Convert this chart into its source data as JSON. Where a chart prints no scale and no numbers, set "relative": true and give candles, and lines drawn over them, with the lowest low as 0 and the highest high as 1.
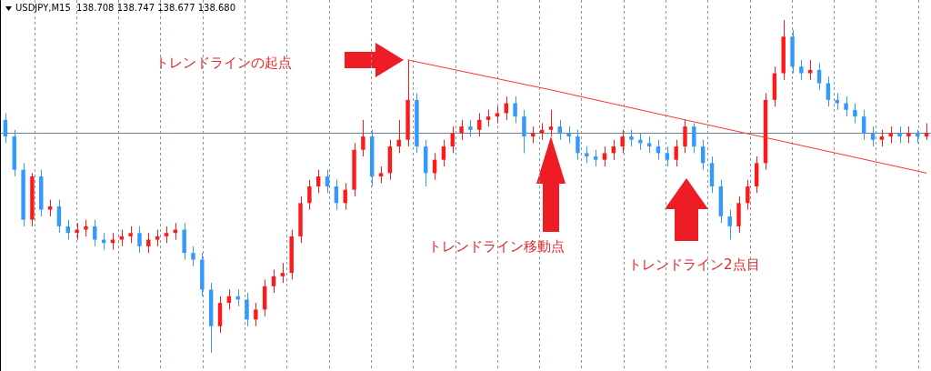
{
  "chart_data": {
    "type": "candlestick",
    "title": "USDJPY,M15  138.708 138.747 138.677 138.680",
    "relative": true,
    "tick_labels": false,
    "legend": false,
    "grid": "x",
    "annotations": [
      "トレンドラインの起点",
      "トレンドライン移動点",
      "トレンドライン2点目"
    ],
    "categories": [
      null,
      null,
      null,
      null,
      null,
      null,
      null,
      null,
      null,
      null,
      null,
      null,
      null,
      null,
      null,
      null,
      null,
      null,
      null,
      null,
      null,
      null,
      null,
      null,
      null,
      null,
      null,
      null,
      null,
      null,
      null,
      null,
      null,
      null,
      null,
      null,
      null,
      null,
      null,
      null,
      null,
      null,
      null,
      null,
      null,
      null,
      null,
      null,
      null,
      null,
      null,
      null,
      null,
      null,
      null,
      null,
      null,
      null,
      null,
      null,
      null,
      null,
      null,
      null,
      null,
      null,
      null,
      null,
      null,
      null,
      null,
      null,
      null,
      null,
      null,
      null,
      null,
      null,
      null,
      null,
      null,
      null,
      null,
      null,
      null,
      null,
      null,
      null,
      null,
      null,
      null,
      null,
      null,
      null,
      null,
      null,
      null,
      null,
      null,
      null,
      null,
      null,
      null,
      null
    ],
    "ref_lines": [
      {
        "axis": "y",
        "value": 0.66,
        "color": "#6e8096"
      }
    ],
    "series": [
      {
        "colors": [
          "#3399ff",
          "#3399ff",
          "#3399ff",
          "#ff1a1a",
          "#3399ff",
          "#ff1a1a",
          "#3399ff",
          "#3399ff",
          "#ff1a1a",
          "#ff1a1a",
          "#3399ff",
          "#3399ff",
          "#ff1a1a",
          "#ff1a1a",
          "#ff1a1a",
          "#3399ff",
          "#ff1a1a",
          "#ff1a1a",
          "#ff1a1a",
          "#ff1a1a",
          "#3399ff",
          "#3399ff",
          "#3399ff",
          "#3399ff",
          "#ff1a1a",
          "#ff1a1a",
          "#3399ff",
          "#3399ff",
          "#ff1a1a",
          "#ff1a1a",
          "#ff1a1a",
          "#ff1a1a",
          "#ff1a1a",
          "#ff1a1a",
          "#ff1a1a",
          "#ff1a1a",
          "#3399ff",
          "#3399ff",
          "#ff1a1a",
          "#ff1a1a",
          "#ff1a1a",
          "#3399ff",
          "#ff1a1a",
          "#ff1a1a",
          "#ff1a1a",
          "#ff1a1a",
          "#3399ff",
          "#3399ff",
          "#ff1a1a",
          "#ff1a1a",
          "#ff1a1a",
          "#ff1a1a",
          "#3399ff",
          "#ff1a1a",
          "#ff1a1a",
          "#ff1a1a",
          "#ff1a1a",
          "#3399ff",
          "#3399ff",
          "#ff1a1a",
          "#ff1a1a",
          "#ff1a1a",
          "#3399ff",
          "#3399ff",
          "#3399ff",
          "#3399ff",
          "#3399ff",
          "#ff1a1a",
          "#ff1a1a",
          "#ff1a1a",
          "#3399ff",
          "#3399ff",
          "#3399ff",
          "#3399ff",
          "#3399ff",
          "#ff1a1a",
          "#ff1a1a",
          "#3399ff",
          "#3399ff",
          "#3399ff",
          "#3399ff",
          "#3399ff",
          "#ff1a1a",
          "#ff1a1a",
          "#ff1a1a",
          "#ff1a1a",
          "#ff1a1a",
          "#ff1a1a",
          "#3399ff",
          "#3399ff",
          "#ff1a1a",
          "#3399ff",
          "#3399ff",
          "#3399ff",
          "#3399ff",
          "#3399ff",
          "#3399ff",
          "#3399ff",
          "#ff1a1a",
          "#ff1a1a",
          "#3399ff",
          "#ff1a1a",
          "#3399ff",
          "#ff1a1a"
        ],
        "ohlc": [
          [
            0.7,
            0.72,
            0.63,
            0.65
          ],
          [
            0.65,
            0.67,
            0.53,
            0.55
          ],
          [
            0.55,
            0.57,
            0.38,
            0.4
          ],
          [
            0.4,
            0.54,
            0.38,
            0.53
          ],
          [
            0.53,
            0.55,
            0.41,
            0.43
          ],
          [
            0.43,
            0.46,
            0.41,
            0.44
          ],
          [
            0.44,
            0.46,
            0.36,
            0.38
          ],
          [
            0.38,
            0.4,
            0.34,
            0.36
          ],
          [
            0.36,
            0.39,
            0.34,
            0.37
          ],
          [
            0.37,
            0.4,
            0.35,
            0.38
          ],
          [
            0.38,
            0.4,
            0.32,
            0.34
          ],
          [
            0.34,
            0.36,
            0.31,
            0.33
          ],
          [
            0.33,
            0.36,
            0.31,
            0.34
          ],
          [
            0.34,
            0.37,
            0.32,
            0.35
          ],
          [
            0.35,
            0.38,
            0.33,
            0.36
          ],
          [
            0.36,
            0.38,
            0.3,
            0.32
          ],
          [
            0.32,
            0.36,
            0.3,
            0.34
          ],
          [
            0.34,
            0.37,
            0.32,
            0.35
          ],
          [
            0.35,
            0.38,
            0.33,
            0.36
          ],
          [
            0.36,
            0.39,
            0.34,
            0.37
          ],
          [
            0.37,
            0.39,
            0.28,
            0.3
          ],
          [
            0.3,
            0.32,
            0.26,
            0.28
          ],
          [
            0.28,
            0.3,
            0.17,
            0.19
          ],
          [
            0.19,
            0.21,
            0.0,
            0.08
          ],
          [
            0.08,
            0.17,
            0.06,
            0.15
          ],
          [
            0.15,
            0.19,
            0.13,
            0.17
          ],
          [
            0.17,
            0.19,
            0.14,
            0.16
          ],
          [
            0.16,
            0.18,
            0.08,
            0.1
          ],
          [
            0.1,
            0.15,
            0.08,
            0.13
          ],
          [
            0.13,
            0.22,
            0.11,
            0.2
          ],
          [
            0.2,
            0.25,
            0.18,
            0.23
          ],
          [
            0.23,
            0.27,
            0.21,
            0.24
          ],
          [
            0.24,
            0.37,
            0.22,
            0.35
          ],
          [
            0.35,
            0.47,
            0.33,
            0.45
          ],
          [
            0.45,
            0.52,
            0.43,
            0.5
          ],
          [
            0.5,
            0.55,
            0.48,
            0.53
          ],
          [
            0.53,
            0.55,
            0.48,
            0.5
          ],
          [
            0.5,
            0.52,
            0.43,
            0.45
          ],
          [
            0.45,
            0.51,
            0.43,
            0.49
          ],
          [
            0.49,
            0.63,
            0.47,
            0.61
          ],
          [
            0.61,
            0.7,
            0.59,
            0.65
          ],
          [
            0.65,
            0.67,
            0.5,
            0.53
          ],
          [
            0.53,
            0.56,
            0.51,
            0.54
          ],
          [
            0.54,
            0.64,
            0.52,
            0.62
          ],
          [
            0.62,
            0.7,
            0.6,
            0.64
          ],
          [
            0.64,
            0.88,
            0.62,
            0.76
          ],
          [
            0.76,
            0.78,
            0.6,
            0.62
          ],
          [
            0.62,
            0.64,
            0.5,
            0.54
          ],
          [
            0.54,
            0.6,
            0.52,
            0.58
          ],
          [
            0.58,
            0.64,
            0.56,
            0.62
          ],
          [
            0.62,
            0.68,
            0.6,
            0.66
          ],
          [
            0.66,
            0.7,
            0.64,
            0.68
          ],
          [
            0.68,
            0.7,
            0.65,
            0.67
          ],
          [
            0.67,
            0.72,
            0.65,
            0.7
          ],
          [
            0.7,
            0.73,
            0.68,
            0.71
          ],
          [
            0.71,
            0.74,
            0.69,
            0.72
          ],
          [
            0.72,
            0.77,
            0.7,
            0.75
          ],
          [
            0.75,
            0.77,
            0.69,
            0.71
          ],
          [
            0.71,
            0.73,
            0.6,
            0.65
          ],
          [
            0.65,
            0.68,
            0.63,
            0.66
          ],
          [
            0.66,
            0.69,
            0.64,
            0.67
          ],
          [
            0.67,
            0.73,
            0.65,
            0.68
          ],
          [
            0.68,
            0.7,
            0.64,
            0.66
          ],
          [
            0.66,
            0.68,
            0.63,
            0.65
          ],
          [
            0.65,
            0.67,
            0.58,
            0.6
          ],
          [
            0.6,
            0.62,
            0.57,
            0.59
          ],
          [
            0.59,
            0.61,
            0.56,
            0.58
          ],
          [
            0.58,
            0.62,
            0.56,
            0.6
          ],
          [
            0.6,
            0.64,
            0.58,
            0.62
          ],
          [
            0.62,
            0.67,
            0.6,
            0.65
          ],
          [
            0.65,
            0.67,
            0.62,
            0.64
          ],
          [
            0.64,
            0.66,
            0.61,
            0.63
          ],
          [
            0.63,
            0.65,
            0.6,
            0.62
          ],
          [
            0.62,
            0.64,
            0.58,
            0.6
          ],
          [
            0.6,
            0.62,
            0.56,
            0.58
          ],
          [
            0.58,
            0.64,
            0.56,
            0.62
          ],
          [
            0.62,
            0.7,
            0.6,
            0.68
          ],
          [
            0.68,
            0.69,
            0.6,
            0.62
          ],
          [
            0.62,
            0.64,
            0.55,
            0.57
          ],
          [
            0.57,
            0.59,
            0.48,
            0.5
          ],
          [
            0.5,
            0.52,
            0.39,
            0.41
          ],
          [
            0.41,
            0.43,
            0.34,
            0.38
          ],
          [
            0.38,
            0.47,
            0.36,
            0.45
          ],
          [
            0.45,
            0.52,
            0.43,
            0.5
          ],
          [
            0.5,
            0.59,
            0.48,
            0.57
          ],
          [
            0.57,
            0.78,
            0.55,
            0.76
          ],
          [
            0.76,
            0.86,
            0.74,
            0.84
          ],
          [
            0.84,
            1.0,
            0.82,
            0.95
          ],
          [
            0.95,
            0.97,
            0.84,
            0.86
          ],
          [
            0.86,
            0.88,
            0.82,
            0.84
          ],
          [
            0.84,
            0.88,
            0.82,
            0.85
          ],
          [
            0.85,
            0.87,
            0.79,
            0.81
          ],
          [
            0.81,
            0.83,
            0.74,
            0.76
          ],
          [
            0.76,
            0.78,
            0.73,
            0.75
          ],
          [
            0.75,
            0.77,
            0.71,
            0.73
          ],
          [
            0.73,
            0.75,
            0.69,
            0.71
          ],
          [
            0.71,
            0.73,
            0.64,
            0.66
          ],
          [
            0.66,
            0.68,
            0.62,
            0.64
          ],
          [
            0.64,
            0.67,
            0.62,
            0.65
          ],
          [
            0.65,
            0.68,
            0.63,
            0.66
          ],
          [
            0.66,
            0.68,
            0.63,
            0.65
          ],
          [
            0.65,
            0.68,
            0.63,
            0.66
          ],
          [
            0.66,
            0.67,
            0.63,
            0.65
          ],
          [
            0.65,
            0.69,
            0.64,
            0.66
          ]
        ]
      },
      {
        "type": "line",
        "color": "#ff3030",
        "line_style": "solid",
        "values": [
          null,
          null,
          null,
          null,
          null,
          null,
          null,
          null,
          null,
          null,
          null,
          null,
          null,
          null,
          null,
          null,
          null,
          null,
          null,
          null,
          null,
          null,
          null,
          null,
          null,
          null,
          null,
          null,
          null,
          null,
          null,
          null,
          null,
          null,
          null,
          null,
          null,
          null,
          null,
          null,
          null,
          null,
          null,
          null,
          null,
          0.88,
          null,
          null,
          null,
          null,
          null,
          null,
          null,
          null,
          null,
          null,
          null,
          null,
          null,
          null,
          null,
          0.79,
          null,
          null,
          null,
          null,
          null,
          null,
          null,
          null,
          null,
          null,
          null,
          null,
          null,
          null,
          0.7,
          null,
          null,
          null,
          null,
          null,
          null,
          null,
          null,
          null,
          null,
          null,
          null,
          null,
          null,
          null,
          null,
          null,
          null,
          null,
          null,
          null,
          null,
          null,
          null,
          null,
          null,
          0.54
        ]
      }
    ]
  }
}
